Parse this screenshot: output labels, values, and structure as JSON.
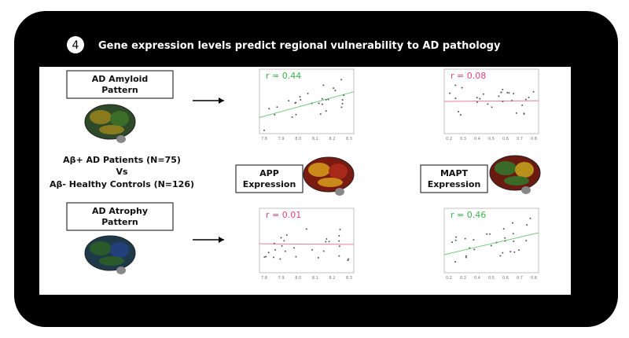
{
  "header": {
    "step": "4",
    "title": "Gene expression levels predict regional vulnerability to AD pathology"
  },
  "patterns": [
    "AD Amyloid Pattern",
    "AD Atrophy Pattern"
  ],
  "groups": [
    "Aβ+ AD Patients (N=75)",
    "Vs",
    "Aβ- Healthy Controls (N=126)"
  ],
  "genes": [
    "APP Expression",
    "MAPT Expression"
  ],
  "plots": [
    {
      "r_label": "r = 0.44",
      "color": "#3cb44b",
      "xticks": [
        "7.8",
        "7.9",
        "8.0",
        "8.1",
        "8.2",
        "8.3"
      ]
    },
    {
      "r_label": "r = 0.08",
      "color": "#e0457b",
      "xticks": [
        "0.2",
        "0.3",
        "0.4",
        "0.5",
        "0.6",
        "0.7",
        "0.8"
      ]
    },
    {
      "r_label": "r = 0.01",
      "color": "#e0457b",
      "xticks": [
        "7.8",
        "7.9",
        "8.0",
        "8.1",
        "8.2",
        "8.3"
      ]
    },
    {
      "r_label": "r = 0.46",
      "color": "#3cb44b",
      "xticks": [
        "0.2",
        "0.3",
        "0.4",
        "0.5",
        "0.6",
        "0.7",
        "0.8"
      ]
    }
  ]
}
